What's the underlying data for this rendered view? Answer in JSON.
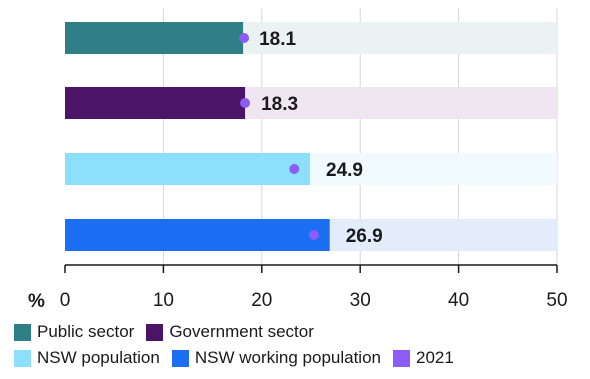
{
  "chart_data": {
    "type": "bar",
    "orientation": "horizontal",
    "unit_label": "%",
    "xlim": [
      0,
      50
    ],
    "xticks": [
      0,
      10,
      20,
      30,
      40,
      50
    ],
    "grid": true,
    "bars": [
      {
        "series": "Public sector",
        "value": 18.1,
        "label": "18.1",
        "marker_2021": 18.2,
        "color": "#2e8086",
        "track_color": "#eaf2f3"
      },
      {
        "series": "Government sector",
        "value": 18.3,
        "label": "18.3",
        "marker_2021": 18.3,
        "color": "#4b1469",
        "track_color": "#efe6f2"
      },
      {
        "series": "NSW population",
        "value": 24.9,
        "label": "24.9",
        "marker_2021": 23.3,
        "color": "#8ce0fb",
        "track_color": "#f0faff"
      },
      {
        "series": "NSW working population",
        "value": 26.9,
        "label": "26.9",
        "marker_2021": 25.3,
        "color": "#1c6ef2",
        "track_color": "#e2ecfb"
      }
    ],
    "legend": {
      "placement": "bottom",
      "rows": [
        [
          {
            "name": "Public sector",
            "color": "#2e8086"
          },
          {
            "name": "Government sector",
            "color": "#4b1469"
          }
        ],
        [
          {
            "name": "NSW population",
            "color": "#8ce0fb"
          },
          {
            "name": "NSW working population",
            "color": "#1c6ef2"
          },
          {
            "name": "2021",
            "color": "#8b5cf6"
          }
        ]
      ]
    }
  }
}
